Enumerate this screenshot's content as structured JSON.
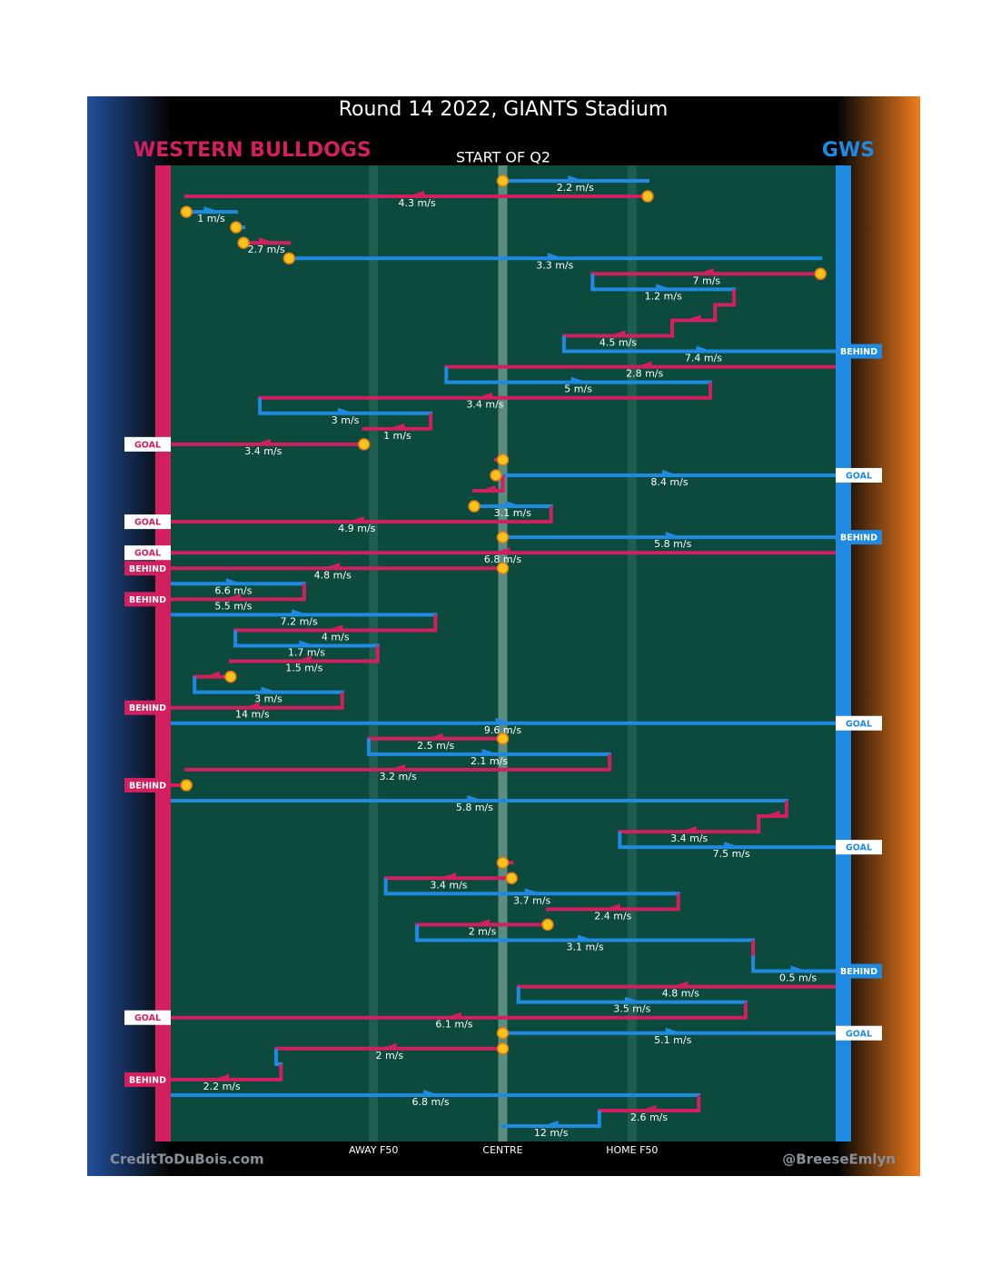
{
  "chart_data": {
    "type": "possession-chains",
    "title": "Round 14 2022, GIANTS Stadium",
    "subtitle": "START OF Q2",
    "credit_left": "CreditToDuBois.com",
    "credit_right": "@BreeseEmlyn",
    "teams": [
      {
        "name": "WESTERN BULLDOGS",
        "color": "#d21f5f"
      },
      {
        "name": "GWS",
        "color": "#1f8ae2"
      }
    ],
    "xlim": [
      0,
      100
    ],
    "xticks": [
      {
        "value": 31,
        "label": "AWAY F50"
      },
      {
        "value": 50,
        "label": "CENTRE"
      },
      {
        "value": 69,
        "label": "HOME F50"
      }
    ],
    "possessions": [
      {
        "team": 1,
        "from": 50,
        "to": 71.3,
        "label": "2.2 m/s",
        "stoppage": true
      },
      {
        "team": 0,
        "from": 71.3,
        "to": 3.5,
        "label": "4.3 m/s",
        "stoppage": true
      },
      {
        "team": 1,
        "from": 3.5,
        "to": 10.8,
        "label": "1 m/s",
        "stoppage": true
      },
      {
        "team": 1,
        "from": 10.8,
        "to": 11.9,
        "stoppage": true
      },
      {
        "team": 0,
        "from": 11.9,
        "to": 18.6,
        "label": "2.7 m/s",
        "stoppage": true
      },
      {
        "team": 1,
        "from": 18.6,
        "to": 96.7,
        "label": "3.3 m/s",
        "stoppage": true
      },
      {
        "team": 0,
        "from": 96.7,
        "to": 63.2,
        "label": "7 m/s",
        "stoppage": true
      },
      {
        "team": 1,
        "from": 63.2,
        "to": 84.0,
        "label": "1.2 m/s"
      },
      {
        "team": 0,
        "from": 84.0,
        "to": 81.2
      },
      {
        "team": 0,
        "from": 81.2,
        "to": 74.9
      },
      {
        "team": 0,
        "from": 74.9,
        "to": 59.0,
        "label": "4.5 m/s"
      },
      {
        "team": 1,
        "from": 59.0,
        "to": 100,
        "label": "7.4 m/s",
        "outcome": "BEHIND"
      },
      {
        "team": 0,
        "from": 100,
        "to": 41.7,
        "label": "2.8 m/s"
      },
      {
        "team": 1,
        "from": 41.7,
        "to": 80.5,
        "label": "5 m/s"
      },
      {
        "team": 0,
        "from": 80.5,
        "to": 14.3,
        "label": "3.4 m/s"
      },
      {
        "team": 1,
        "from": 14.3,
        "to": 39.4,
        "label": "3 m/s"
      },
      {
        "team": 0,
        "from": 39.4,
        "to": 29.6,
        "label": "1 m/s"
      },
      {
        "team": 0,
        "from": 29.6,
        "to": 0,
        "label": "3.4 m/s",
        "outcome": "GOAL",
        "stoppage": true
      },
      {
        "team": 0,
        "from": 50,
        "to": 49.0,
        "stoppage": true
      },
      {
        "team": 1,
        "from": 49.0,
        "to": 100,
        "label": "8.4 m/s",
        "outcome": "GOAL",
        "stoppage": true
      },
      {
        "team": 0,
        "from": 50,
        "to": 45.8
      },
      {
        "team": 1,
        "from": 45.8,
        "to": 57.1,
        "label": "3.1 m/s",
        "stoppage": true
      },
      {
        "team": 0,
        "from": 57.1,
        "to": 0,
        "label": "4.9 m/s",
        "outcome": "GOAL"
      },
      {
        "team": 1,
        "from": 50,
        "to": 100,
        "label": "5.8 m/s",
        "outcome": "BEHIND",
        "stoppage": true
      },
      {
        "team": 0,
        "from": 100,
        "to": 0,
        "label": "6.8 m/s",
        "outcome": "GOAL"
      },
      {
        "team": 0,
        "from": 50,
        "to": 0,
        "label": "4.8 m/s",
        "outcome": "BEHIND",
        "stoppage": true
      },
      {
        "team": 1,
        "from": 0,
        "to": 20.8,
        "label": "6.6 m/s"
      },
      {
        "team": 0,
        "from": 20.8,
        "to": 0,
        "label": "5.5 m/s",
        "outcome": "BEHIND"
      },
      {
        "team": 1,
        "from": 0,
        "to": 40.1,
        "label": "7.2 m/s"
      },
      {
        "team": 0,
        "from": 40.1,
        "to": 10.7,
        "label": "4 m/s"
      },
      {
        "team": 1,
        "from": 10.7,
        "to": 31.6,
        "label": "1.7 m/s"
      },
      {
        "team": 0,
        "from": 31.6,
        "to": 10.0,
        "label": "1.5 m/s"
      },
      {
        "team": 0,
        "from": 10.0,
        "to": 4.7,
        "stoppage": true
      },
      {
        "team": 1,
        "from": 4.7,
        "to": 26.4,
        "label": "3 m/s"
      },
      {
        "team": 0,
        "from": 26.4,
        "to": 0,
        "label": "14 m/s",
        "outcome": "BEHIND"
      },
      {
        "team": 1,
        "from": 0,
        "to": 100,
        "label": "9.6 m/s",
        "outcome": "GOAL"
      },
      {
        "team": 0,
        "from": 50,
        "to": 30.3,
        "label": "2.5 m/s",
        "stoppage": true
      },
      {
        "team": 1,
        "from": 30.3,
        "to": 65.7,
        "label": "2.1 m/s"
      },
      {
        "team": 0,
        "from": 65.7,
        "to": 3.5,
        "label": "3.2 m/s"
      },
      {
        "team": 0,
        "from": 3.5,
        "to": 0,
        "outcome": "BEHIND",
        "stoppage": true
      },
      {
        "team": 1,
        "from": 0,
        "to": 91.7,
        "label": "5.8 m/s"
      },
      {
        "team": 0,
        "from": 91.7,
        "to": 87.6
      },
      {
        "team": 0,
        "from": 87.6,
        "to": 67.2,
        "label": "3.4 m/s"
      },
      {
        "team": 1,
        "from": 67.2,
        "to": 100,
        "label": "7.5 m/s",
        "outcome": "GOAL"
      },
      {
        "team": 0,
        "from": 50,
        "to": 51.3,
        "stoppage": true
      },
      {
        "team": 0,
        "from": 51.3,
        "to": 32.8,
        "label": "3.4 m/s",
        "stoppage": true
      },
      {
        "team": 1,
        "from": 32.8,
        "to": 75.8,
        "label": "3.7 m/s"
      },
      {
        "team": 0,
        "from": 75.8,
        "to": 56.6,
        "label": "2.4 m/s"
      },
      {
        "team": 0,
        "from": 56.6,
        "to": 37.4,
        "label": "2 m/s",
        "stoppage": true
      },
      {
        "team": 1,
        "from": 37.4,
        "to": 86.8,
        "label": "3.1 m/s"
      },
      {
        "team": 0,
        "from": 86.8,
        "to": 86.8
      },
      {
        "team": 1,
        "from": 86.8,
        "to": 100,
        "label": "0.5 m/s",
        "outcome": "BEHIND"
      },
      {
        "team": 0,
        "from": 100,
        "to": 52.3,
        "label": "4.8 m/s"
      },
      {
        "team": 1,
        "from": 52.3,
        "to": 85.7,
        "label": "3.5 m/s"
      },
      {
        "team": 0,
        "from": 85.7,
        "to": 0,
        "label": "6.1 m/s",
        "outcome": "GOAL"
      },
      {
        "team": 1,
        "from": 50,
        "to": 100,
        "label": "5.1 m/s",
        "outcome": "GOAL",
        "stoppage": true
      },
      {
        "team": 0,
        "from": 50,
        "to": 16.7,
        "label": "2 m/s",
        "stoppage": true
      },
      {
        "team": 1,
        "from": 16.7,
        "to": 17.4
      },
      {
        "team": 0,
        "from": 17.4,
        "to": 0,
        "label": "2.2 m/s",
        "outcome": "BEHIND"
      },
      {
        "team": 1,
        "from": 0,
        "to": 78.8,
        "label": "6.8 m/s"
      },
      {
        "team": 0,
        "from": 78.8,
        "to": 64.2,
        "label": "2.6 m/s"
      },
      {
        "team": 1,
        "from": 64.2,
        "to": 50,
        "label": "12 m/s"
      }
    ]
  }
}
